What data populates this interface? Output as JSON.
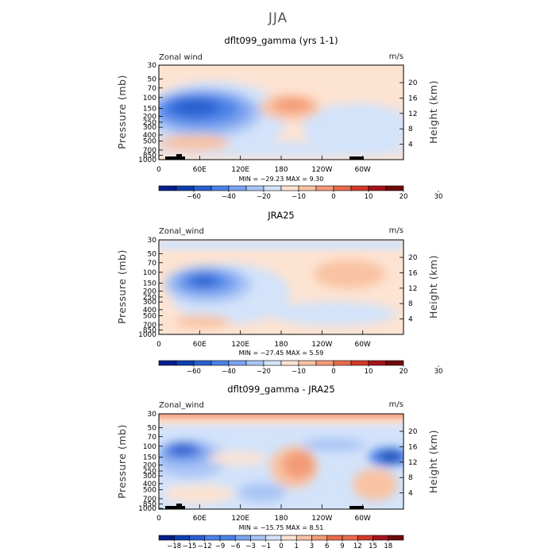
{
  "title": "JJA",
  "colors": {
    "neg": [
      "#071f8a",
      "#0d3fae",
      "#2a5fd0",
      "#4a82e6",
      "#7ba3ef",
      "#a9c4f5",
      "#d3e3fa"
    ],
    "zero": "#f6f9fe",
    "pos": [
      "#fde3d2",
      "#f9c2a2",
      "#f39b77",
      "#e86b4b",
      "#d2392a",
      "#a51419",
      "#6e0a0c"
    ]
  },
  "chart_data": [
    {
      "type": "heatmap",
      "name": "model",
      "title": "dflt099_gamma (yrs 1-1)",
      "variable_label": "Zonal wind",
      "units_label": "m/s",
      "stats": "MIN = −29.23   MAX =   9.30",
      "ylabel": "Pressure (mb)",
      "y2label": "Height (km)",
      "x_ticks": [
        "0",
        "60E",
        "120E",
        "180",
        "120W",
        "60W"
      ],
      "y_ticks": [
        "30",
        "50",
        "70",
        "100",
        "150",
        "200",
        "250",
        "300",
        "400",
        "500",
        "700",
        "850",
        "1000"
      ],
      "y2_ticks": [
        "20",
        "16",
        "12",
        "8",
        "4"
      ],
      "colorbar_labels": [
        "−60",
        "−40",
        "−20",
        "−10",
        "0",
        "10",
        "20",
        "30"
      ],
      "colorbar_n": 14,
      "value_range": [
        -29.23,
        9.3
      ]
    },
    {
      "type": "heatmap",
      "name": "obs",
      "title": "JRA25",
      "variable_label": "Zonal_wind",
      "units_label": "m/s",
      "stats": "MIN = −27.45   MAX =   5.59",
      "ylabel": "Pressure (mb)",
      "y2label": "Height (km)",
      "x_ticks": [
        "0",
        "60E",
        "120E",
        "180",
        "120W",
        "60W"
      ],
      "y_ticks": [
        "30",
        "50",
        "70",
        "100",
        "150",
        "200",
        "250",
        "300",
        "400",
        "500",
        "700",
        "850",
        "1000"
      ],
      "y2_ticks": [
        "20",
        "16",
        "12",
        "8",
        "4"
      ],
      "colorbar_labels": [
        "−60",
        "−40",
        "−20",
        "−10",
        "0",
        "10",
        "20",
        "30"
      ],
      "colorbar_n": 14,
      "value_range": [
        -27.45,
        5.59
      ]
    },
    {
      "type": "heatmap",
      "name": "diff",
      "title": "dflt099_gamma - JRA25",
      "variable_label": "Zonal_wind",
      "units_label": "m/s",
      "stats": "MIN = −15.75   MAX =   8.51",
      "ylabel": "Pressure (mb)",
      "y2label": "Height (km)",
      "x_ticks": [
        "0",
        "60E",
        "120E",
        "180",
        "120W",
        "60W"
      ],
      "y_ticks": [
        "30",
        "50",
        "70",
        "100",
        "150",
        "200",
        "250",
        "300",
        "400",
        "500",
        "700",
        "850",
        "1000"
      ],
      "y2_ticks": [
        "20",
        "16",
        "12",
        "8",
        "4"
      ],
      "colorbar_labels": [
        "−18",
        "−15",
        "−12",
        "−9",
        "−6",
        "−3",
        "−1",
        "0",
        "1",
        "3",
        "6",
        "9",
        "12",
        "15",
        "18"
      ],
      "colorbar_n": 16,
      "value_range": [
        -15.75,
        8.51
      ]
    }
  ]
}
